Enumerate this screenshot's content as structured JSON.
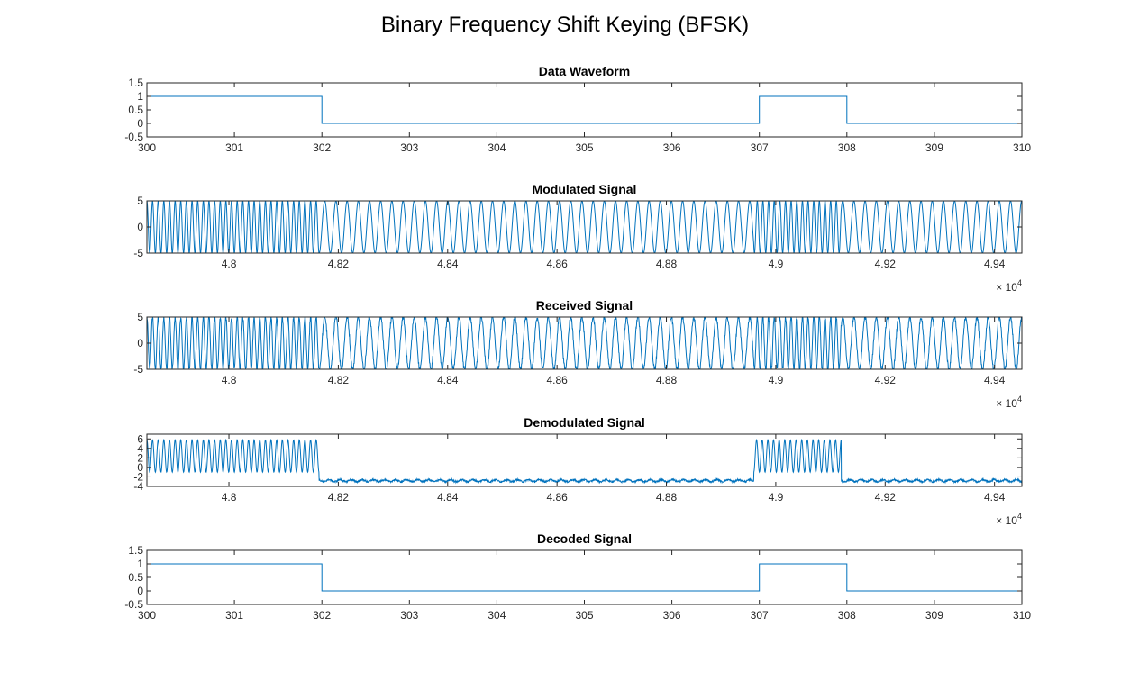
{
  "figure": {
    "title": "Binary Frequency Shift Keying (BFSK)"
  },
  "colors": {
    "line": "#0072BD",
    "axis": "#262626",
    "background": "#ffffff"
  },
  "chart_data": [
    {
      "id": "data",
      "type": "line",
      "title": "Data Waveform",
      "step": true,
      "xlim": [
        300,
        310
      ],
      "ylim": [
        -0.5,
        1.5
      ],
      "xticks": [
        300,
        301,
        302,
        303,
        304,
        305,
        306,
        307,
        308,
        309,
        310
      ],
      "yticks": [
        "-0.5",
        "0",
        "0.5",
        "1",
        "1.5"
      ],
      "exponent": "",
      "x": [
        300,
        302,
        302,
        307,
        307,
        308,
        308,
        310
      ],
      "y": [
        1,
        1,
        0,
        0,
        1,
        1,
        0,
        0
      ]
    },
    {
      "id": "mod",
      "type": "line",
      "title": "Modulated Signal",
      "signal": "fsk",
      "xlim": [
        47850,
        49450
      ],
      "ylim": [
        -5,
        5
      ],
      "xticks": [
        4.8,
        4.82,
        4.84,
        4.86,
        4.88,
        4.9,
        4.92,
        4.94
      ],
      "yticks": [
        "-5",
        "0",
        "5"
      ],
      "exponent": "4",
      "amplitude": 5,
      "bits": [
        {
          "from": 47850,
          "to": 48165,
          "bit": 1
        },
        {
          "from": 48165,
          "to": 48960,
          "bit": 0
        },
        {
          "from": 48960,
          "to": 49120,
          "bit": 1
        },
        {
          "from": 49120,
          "to": 49450,
          "bit": 0
        }
      ],
      "cycles_per_unit": {
        "bit1": 0.0969,
        "bit0": 0.0489
      }
    },
    {
      "id": "rx",
      "type": "line",
      "title": "Received Signal",
      "signal": "fsk-noisy",
      "xlim": [
        47850,
        49450
      ],
      "ylim": [
        -5,
        5
      ],
      "xticks": [
        4.8,
        4.82,
        4.84,
        4.86,
        4.88,
        4.9,
        4.92,
        4.94
      ],
      "yticks": [
        "-5",
        "0",
        "5"
      ],
      "exponent": "4",
      "amplitude": 5,
      "bits": [
        {
          "from": 47850,
          "to": 48165,
          "bit": 1
        },
        {
          "from": 48165,
          "to": 48960,
          "bit": 0
        },
        {
          "from": 48960,
          "to": 49120,
          "bit": 1
        },
        {
          "from": 49120,
          "to": 49450,
          "bit": 0
        }
      ],
      "cycles_per_unit": {
        "bit1": 0.0969,
        "bit0": 0.0489
      }
    },
    {
      "id": "demod",
      "type": "line",
      "title": "Demodulated Signal",
      "signal": "envelope",
      "xlim": [
        47850,
        49450
      ],
      "ylim": [
        -4,
        7
      ],
      "xticks": [
        4.8,
        4.82,
        4.84,
        4.86,
        4.88,
        4.9,
        4.92,
        4.94
      ],
      "yticks": [
        "-4",
        "-2",
        "0",
        "2",
        "4",
        "6"
      ],
      "exponent": "4",
      "bits": [
        {
          "from": 47850,
          "to": 48165,
          "bit": 1
        },
        {
          "from": 48165,
          "to": 48960,
          "bit": 0
        },
        {
          "from": 48960,
          "to": 49120,
          "bit": 1
        },
        {
          "from": 49120,
          "to": 49450,
          "bit": 0
        }
      ],
      "high_level": {
        "center": 2.4,
        "ripple": 3.4,
        "cycles_per_unit": 0.0969
      },
      "low_level": {
        "center": -2.8,
        "ripple": 0.35
      }
    },
    {
      "id": "dec",
      "type": "line",
      "title": "Decoded Signal",
      "step": true,
      "xlim": [
        300,
        310
      ],
      "ylim": [
        -0.5,
        1.5
      ],
      "xticks": [
        300,
        301,
        302,
        303,
        304,
        305,
        306,
        307,
        308,
        309,
        310
      ],
      "yticks": [
        "-0.5",
        "0",
        "0.5",
        "1",
        "1.5"
      ],
      "exponent": "",
      "x": [
        300,
        302,
        302,
        307,
        307,
        308,
        308,
        310
      ],
      "y": [
        1,
        1,
        0,
        0,
        1,
        1,
        0,
        0
      ]
    }
  ]
}
